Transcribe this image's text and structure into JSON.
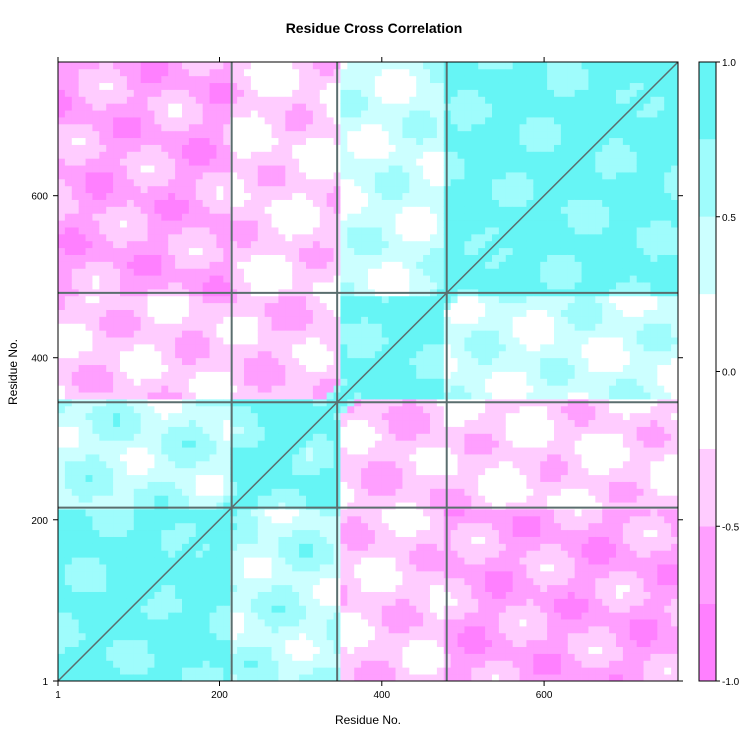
{
  "chart_data": {
    "type": "heatmap",
    "title": "Residue Cross Correlation",
    "xlabel": "Residue No.",
    "ylabel": "Residue No.",
    "xlim": [
      1,
      765
    ],
    "ylim": [
      1,
      765
    ],
    "x_ticks": [
      1,
      200,
      400,
      600
    ],
    "y_ticks": [
      1,
      200,
      400,
      600
    ],
    "colorbar": {
      "range": [
        -1.0,
        1.0
      ],
      "ticks": [
        "1.0",
        "0.5",
        "0.0",
        "-0.5",
        "-1.0"
      ],
      "tick_values": [
        1.0,
        0.5,
        0.0,
        -0.5,
        -1.0
      ],
      "levels": [
        {
          "from": -1.0,
          "to": -0.75,
          "color": "#ff80ff"
        },
        {
          "from": -0.75,
          "to": -0.5,
          "color": "#ff9fff"
        },
        {
          "from": -0.5,
          "to": -0.25,
          "color": "#ffccff"
        },
        {
          "from": -0.25,
          "to": 0.25,
          "color": "#ffffff"
        },
        {
          "from": 0.25,
          "to": 0.5,
          "color": "#ccffff"
        },
        {
          "from": 0.5,
          "to": 0.75,
          "color": "#9ffcfc"
        },
        {
          "from": 0.75,
          "to": 1.0,
          "color": "#66f5f5"
        }
      ]
    },
    "domains": [
      {
        "name": "d1",
        "start": 1,
        "end": 215
      },
      {
        "name": "d2",
        "start": 215,
        "end": 345
      },
      {
        "name": "d3",
        "start": 345,
        "end": 480
      },
      {
        "name": "d4",
        "start": 480,
        "end": 765
      }
    ],
    "block_correlations": [
      [
        0.85,
        0.45,
        -0.35,
        -0.55
      ],
      [
        0.45,
        0.8,
        -0.4,
        -0.3
      ],
      [
        -0.35,
        -0.4,
        0.85,
        0.35
      ],
      [
        -0.55,
        -0.3,
        0.35,
        0.85
      ]
    ],
    "contour_color": "#5a6e6e"
  }
}
